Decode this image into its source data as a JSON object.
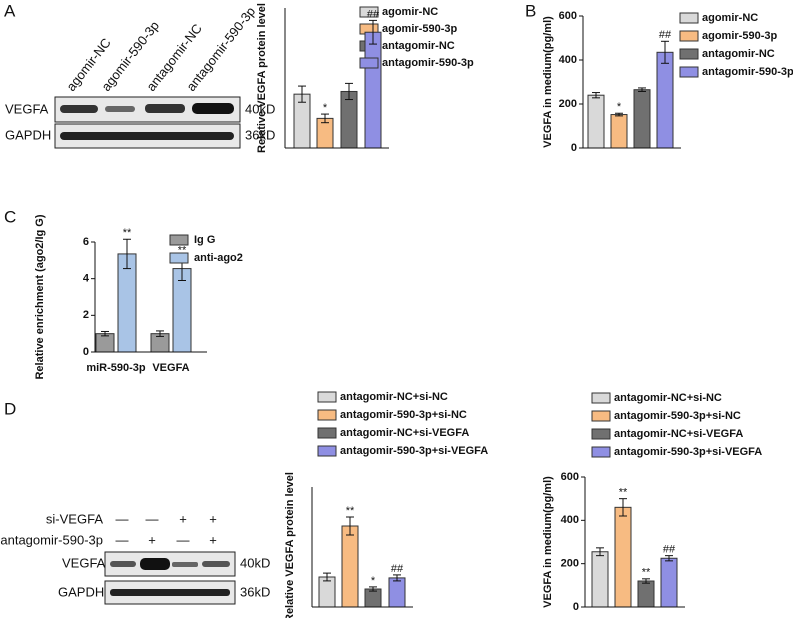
{
  "panel_labels": [
    "A",
    "B",
    "C",
    "D"
  ],
  "blot_A": {
    "lanes": [
      "agomir-NC",
      "agomir-590-3p",
      "antagomir-NC",
      "antagomir-590-3p"
    ],
    "rows": [
      {
        "name": "VEGFA",
        "size": "40kD"
      },
      {
        "name": "GAPDH",
        "size": "36kD"
      }
    ]
  },
  "blot_D": {
    "conditions": [
      {
        "name": "si-VEGFA",
        "signs": [
          "—",
          "—",
          "+",
          "+"
        ]
      },
      {
        "name": "antagomir-590-3p",
        "signs": [
          "—",
          "+",
          "—",
          "+"
        ]
      }
    ],
    "rows": [
      {
        "name": "VEGFA",
        "size": "40kD"
      },
      {
        "name": "GAPDH",
        "size": "36kD"
      }
    ]
  },
  "chart_data": [
    {
      "type": "bar",
      "y_label": "Relative VEGFA protein level",
      "categories": [
        "agomir-NC",
        "agomir-590-3p",
        "antagomir-NC",
        "antagomir-590-3p"
      ],
      "values": [
        1.0,
        0.55,
        1.05,
        2.15
      ],
      "errors": [
        0.15,
        0.08,
        0.15,
        0.22
      ],
      "significance": [
        null,
        "*",
        null,
        "##"
      ],
      "colors": [
        "#d9d9d9",
        "#f7bb82",
        "#707070",
        "#8f8fe3"
      ],
      "ylim": [
        0,
        2.6
      ],
      "legend": "right"
    },
    {
      "type": "bar",
      "y_label": "VEGFA in medium(pg/ml)",
      "categories": [
        "agomir-NC",
        "agomir-590-3p",
        "antagomir-NC",
        "antagomir-590-3p"
      ],
      "values": [
        240,
        152,
        265,
        435
      ],
      "errors": [
        12,
        6,
        8,
        50
      ],
      "significance": [
        null,
        "*",
        null,
        "##"
      ],
      "colors": [
        "#d9d9d9",
        "#f7bb82",
        "#707070",
        "#8f8fe3"
      ],
      "ylim": [
        0,
        600
      ],
      "yticks": [
        0,
        200,
        400,
        600
      ],
      "legend": "right"
    },
    {
      "type": "grouped-bar",
      "y_label": "Relative enrichment (ago2/Ig G)",
      "categories": [
        "miR-590-3p",
        "VEGFA"
      ],
      "series": [
        {
          "name": "Ig G",
          "color": "#9a9a9a",
          "values": [
            1.0,
            1.0
          ],
          "errors": [
            0.12,
            0.15
          ],
          "significance": [
            null,
            null
          ]
        },
        {
          "name": "anti-ago2",
          "color": "#a9c4e6",
          "values": [
            5.35,
            4.55
          ],
          "errors": [
            0.8,
            0.65
          ],
          "significance": [
            "**",
            "**"
          ]
        }
      ],
      "ylim": [
        0,
        6
      ],
      "yticks": [
        0,
        2,
        4,
        6
      ],
      "legend": "right"
    },
    {
      "type": "bar",
      "y_label": "Relative VEGFA protein level",
      "categories": [
        "antagomir-NC+si-NC",
        "antagomir-590-3p+si-NC",
        "antagomir-NC+si-VEGFA",
        "antagomir-590-3p+si-VEGFA"
      ],
      "values": [
        1.0,
        2.7,
        0.6,
        0.97
      ],
      "errors": [
        0.13,
        0.3,
        0.07,
        0.1
      ],
      "significance": [
        null,
        "**",
        "*",
        "##"
      ],
      "colors": [
        "#d9d9d9",
        "#f7bb82",
        "#707070",
        "#8f8fe3"
      ],
      "ylim": [
        0,
        4
      ],
      "legend": "top"
    },
    {
      "type": "bar",
      "y_label": "VEGFA in medium(pg/ml)",
      "categories": [
        "antagomir-NC+si-NC",
        "antagomir-590-3p+si-NC",
        "antagomir-NC+si-VEGFA",
        "antagomir-590-3p+si-VEGFA"
      ],
      "values": [
        255,
        460,
        120,
        225
      ],
      "errors": [
        18,
        40,
        10,
        12
      ],
      "significance": [
        null,
        "**",
        "**",
        "##"
      ],
      "colors": [
        "#d9d9d9",
        "#f7bb82",
        "#707070",
        "#8f8fe3"
      ],
      "ylim": [
        0,
        600
      ],
      "yticks": [
        0,
        200,
        400,
        600
      ],
      "legend": "top"
    }
  ]
}
